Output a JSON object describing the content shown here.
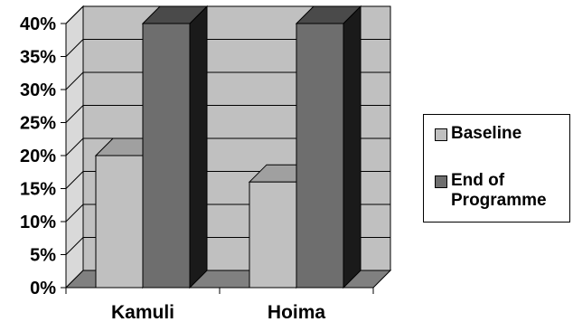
{
  "chart_data": {
    "type": "bar",
    "categories": [
      "Kamuli",
      "Hoima"
    ],
    "series": [
      {
        "name": "Baseline",
        "values": [
          20,
          16
        ],
        "color": "#c0c0c0"
      },
      {
        "name": "End of Programme",
        "values": [
          40,
          40
        ],
        "color": "#6e6e6e"
      }
    ],
    "y_ticks": [
      "0%",
      "5%",
      "10%",
      "15%",
      "20%",
      "25%",
      "30%",
      "35%",
      "40%"
    ],
    "ylim": [
      0,
      40
    ],
    "y_unit": "%",
    "grid": true,
    "three_d": true,
    "legend_position": "right",
    "colors": {
      "plot_wall": "#c0c0c0",
      "floor": "#808080",
      "baseline_front": "#c0c0c0",
      "baseline_top": "#a0a0a0",
      "baseline_side": "#8c8c8c",
      "end_front": "#6e6e6e",
      "end_top": "#4a4a4a",
      "end_side": "#1a1a1a"
    }
  }
}
